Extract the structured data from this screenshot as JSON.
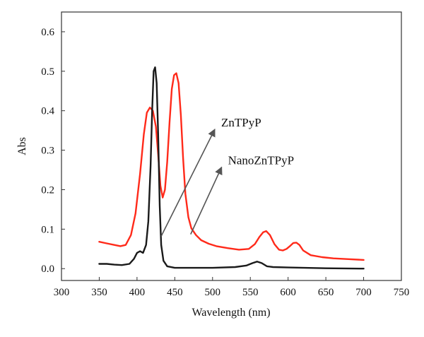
{
  "chart_data": {
    "type": "line",
    "title": "",
    "xlabel": "Wavelength (nm)",
    "ylabel": "Abs",
    "xlim": [
      300,
      750
    ],
    "ylim": [
      -0.03,
      0.65
    ],
    "xticks": [
      300,
      350,
      400,
      450,
      500,
      550,
      600,
      650,
      700,
      750
    ],
    "yticks": [
      0.0,
      0.1,
      0.2,
      0.3,
      0.4,
      0.5,
      0.6
    ],
    "grid": false,
    "legend": "none",
    "series": [
      {
        "color": "#ff2a1a",
        "x": [
          350,
          360,
          370,
          378,
          385,
          392,
          398,
          404,
          409,
          413,
          417,
          421,
          425,
          428,
          431,
          434,
          437,
          440,
          443,
          446,
          449,
          452,
          455,
          458,
          461,
          464,
          468,
          472,
          478,
          485,
          495,
          505,
          520,
          535,
          548,
          556,
          562,
          567,
          571,
          576,
          582,
          588,
          593,
          598,
          603,
          607,
          611,
          615,
          620,
          630,
          645,
          660,
          680,
          700
        ],
        "y": [
          0.068,
          0.064,
          0.06,
          0.057,
          0.06,
          0.085,
          0.14,
          0.24,
          0.34,
          0.395,
          0.408,
          0.4,
          0.36,
          0.29,
          0.21,
          0.18,
          0.2,
          0.27,
          0.37,
          0.455,
          0.49,
          0.495,
          0.47,
          0.39,
          0.28,
          0.19,
          0.13,
          0.102,
          0.085,
          0.072,
          0.063,
          0.057,
          0.052,
          0.048,
          0.05,
          0.062,
          0.08,
          0.092,
          0.095,
          0.085,
          0.062,
          0.048,
          0.046,
          0.05,
          0.058,
          0.065,
          0.066,
          0.06,
          0.046,
          0.034,
          0.029,
          0.026,
          0.024,
          0.022
        ]
      },
      {
        "color": "#1a1a1a",
        "x": [
          350,
          360,
          370,
          380,
          390,
          396,
          400,
          404,
          408,
          412,
          415,
          418,
          420,
          422,
          424,
          426,
          428,
          430,
          432,
          435,
          440,
          450,
          470,
          500,
          530,
          545,
          553,
          559,
          565,
          572,
          580,
          600,
          650,
          700
        ],
        "y": [
          0.012,
          0.012,
          0.01,
          0.009,
          0.012,
          0.025,
          0.04,
          0.044,
          0.04,
          0.06,
          0.12,
          0.26,
          0.4,
          0.5,
          0.51,
          0.47,
          0.34,
          0.16,
          0.06,
          0.02,
          0.006,
          0.002,
          0.002,
          0.002,
          0.004,
          0.008,
          0.014,
          0.018,
          0.014,
          0.006,
          0.004,
          0.003,
          0.001,
          0.0
        ]
      }
    ],
    "annotations": [
      {
        "text": "ZnTPyP",
        "tip": [
          503,
          0.353
        ],
        "tail": [
          432,
          0.082
        ]
      },
      {
        "text": "NanoZnTPyP",
        "tip": [
          512,
          0.257
        ],
        "tail": [
          471,
          0.087
        ]
      }
    ]
  }
}
